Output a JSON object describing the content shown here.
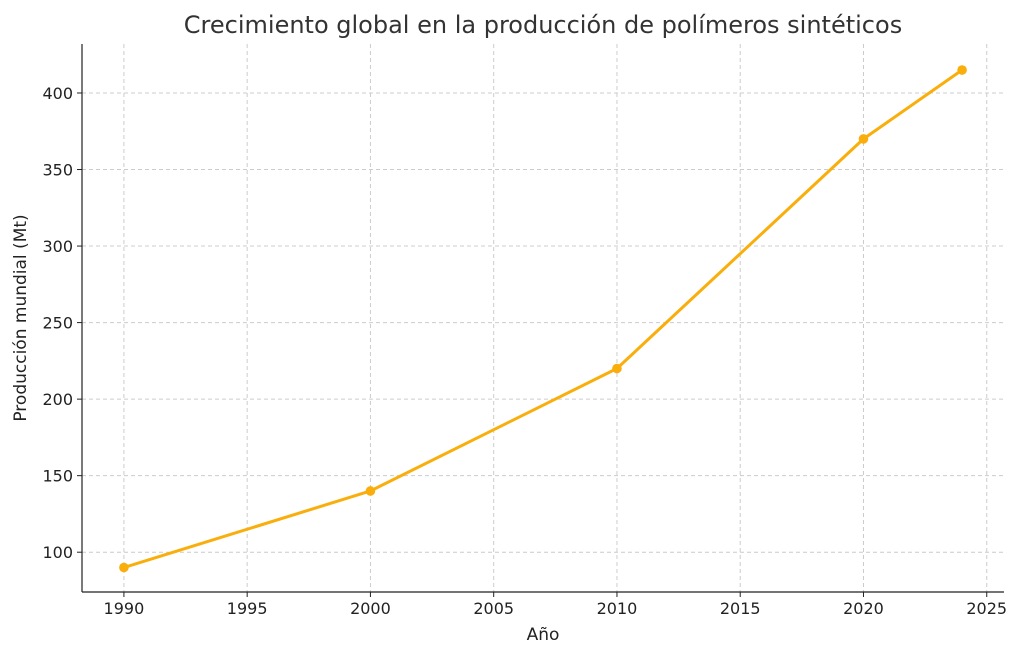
{
  "chart_data": {
    "type": "line",
    "title": "Crecimiento global en la producción de polímeros sintéticos",
    "xlabel": "Año",
    "ylabel": "Producción mundial (Mt)",
    "x": [
      1990,
      2000,
      2010,
      2020,
      2024
    ],
    "series": [
      {
        "values": [
          90,
          140,
          220,
          370,
          415
        ],
        "color": "#F9AE0C"
      }
    ],
    "xlim": [
      1988.3,
      2025.7
    ],
    "ylim": [
      74,
      432
    ],
    "xticks": [
      1990,
      1995,
      2000,
      2005,
      2010,
      2015,
      2020,
      2025
    ],
    "yticks": [
      100,
      150,
      200,
      250,
      300,
      350,
      400
    ],
    "grid": true,
    "marker": "circle"
  }
}
